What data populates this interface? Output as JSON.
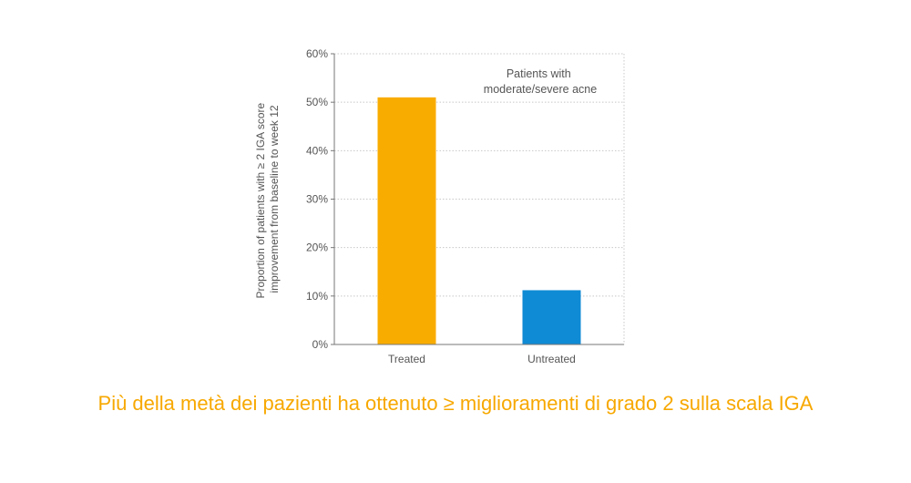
{
  "chart_data": {
    "type": "bar",
    "categories": [
      "Treated",
      "Untreated"
    ],
    "values": [
      51,
      11.2
    ],
    "bar_colors": [
      "#f9ac00",
      "#0f8ad4"
    ],
    "ylabel_lines": [
      "Proportion of patients with ≥ 2 IGA score",
      "improvement from baseline to week 12"
    ],
    "xlabel": "",
    "ylim": [
      0,
      60
    ],
    "yticks": [
      0,
      10,
      20,
      30,
      40,
      50,
      60
    ],
    "ytick_format": "%",
    "grid": true,
    "annotation_lines": [
      "Patients with",
      "moderate/severe acne"
    ]
  },
  "caption": "Più della metà dei pazienti ha ottenuto ≥ miglioramenti di grado 2 sulla scala IGA"
}
